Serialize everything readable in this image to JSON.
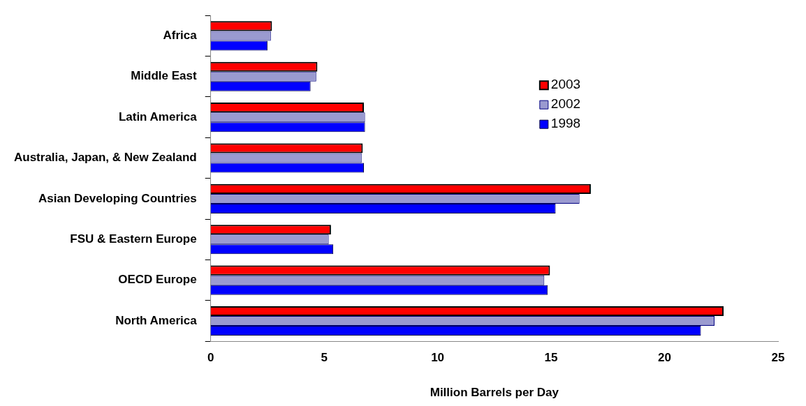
{
  "chart_data": {
    "type": "bar",
    "orientation": "horizontal",
    "xlabel": "Million Barrels per Day",
    "categories": [
      "Africa",
      "Middle East",
      "Latin America",
      "Australia, Japan, & New Zealand",
      "Asian Developing Countries",
      "FSU & Eastern Europe",
      "OECD Europe",
      "North America"
    ],
    "series": [
      {
        "name": "2003",
        "color": "#ff0000",
        "values": [
          2.7,
          4.7,
          6.75,
          6.7,
          16.75,
          5.3,
          14.95,
          22.6
        ]
      },
      {
        "name": "2002",
        "color": "#9a9ad0",
        "values": [
          2.65,
          4.65,
          6.8,
          6.65,
          16.25,
          5.2,
          14.7,
          22.2
        ]
      },
      {
        "name": "1998",
        "color": "#0000ff",
        "values": [
          2.5,
          4.4,
          6.8,
          6.75,
          15.2,
          5.4,
          14.85,
          21.6
        ]
      }
    ],
    "xlim": [
      0,
      25
    ],
    "xticks": [
      0,
      5,
      10,
      15,
      20,
      25
    ],
    "grid": false,
    "legend": "right"
  }
}
